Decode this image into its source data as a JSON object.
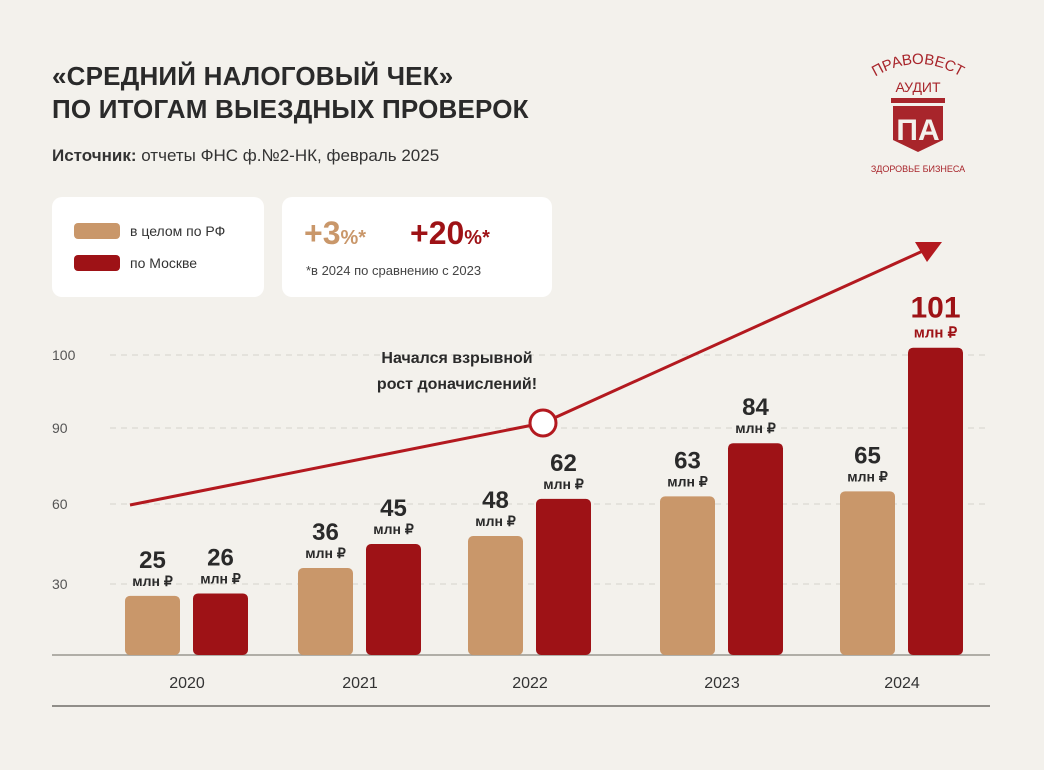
{
  "header": {
    "title_line1": "«СРЕДНИЙ НАЛОГОВЫЙ ЧЕК»",
    "title_line2": "ПО ИТОГАМ ВЫЕЗДНЫХ ПРОВЕРОК",
    "source_label": "Источник:",
    "source_text": " отчеты ФНС ф.№2-НК, февраль 2025"
  },
  "logo": {
    "top": "ПРАВОВЕСТ",
    "middle": "АУДИТ",
    "mark": "ПА",
    "tagline": "ЗДОРОВЬЕ БИЗНЕСА"
  },
  "growth": {
    "rf": "+3",
    "moscow": "+20",
    "pct": "%*",
    "note": "*в 2024 по сравнению с 2023"
  },
  "colors": {
    "rf": "#c9976a",
    "moscow": "#9e1216",
    "bg": "#f3f1ec"
  },
  "chart_data": {
    "type": "bar",
    "title": "«Средний налоговый чек» по итогам выездных проверок",
    "categories": [
      "2020",
      "2021",
      "2022",
      "2023",
      "2024"
    ],
    "series": [
      {
        "name": "в целом по РФ",
        "values": [
          25,
          36,
          48,
          63,
          65
        ]
      },
      {
        "name": "по Москве",
        "values": [
          26,
          45,
          62,
          84,
          101
        ]
      }
    ],
    "unit": "млн ₽",
    "yticks": [
      30,
      60,
      90,
      100
    ],
    "ylim": [
      0,
      101
    ],
    "grid": true,
    "annotation": {
      "line1": "Начался взрывной",
      "line2": "рост доначислений!"
    }
  }
}
